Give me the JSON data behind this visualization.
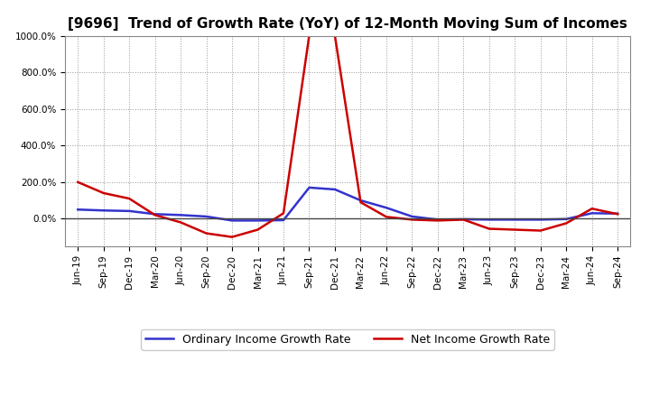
{
  "title": "[9696]  Trend of Growth Rate (YoY) of 12-Month Moving Sum of Incomes",
  "x_labels": [
    "Jun-19",
    "Sep-19",
    "Dec-19",
    "Mar-20",
    "Jun-20",
    "Sep-20",
    "Dec-20",
    "Mar-21",
    "Jun-21",
    "Sep-21",
    "Dec-21",
    "Mar-22",
    "Jun-22",
    "Sep-22",
    "Dec-22",
    "Mar-23",
    "Jun-23",
    "Sep-23",
    "Dec-23",
    "Mar-24",
    "Jun-24",
    "Sep-24"
  ],
  "ordinary_income": [
    50,
    45,
    42,
    25,
    20,
    12,
    -10,
    -10,
    -8,
    170,
    160,
    100,
    60,
    12,
    -5,
    -3,
    -5,
    -5,
    -5,
    -2,
    30,
    28
  ],
  "net_income": [
    200,
    140,
    110,
    20,
    -20,
    -80,
    -100,
    -60,
    30,
    1000,
    1000,
    90,
    10,
    -5,
    -10,
    -5,
    -55,
    -60,
    -65,
    -25,
    55,
    25
  ],
  "ylim": [
    -150,
    1000
  ],
  "yticks": [
    0,
    200,
    400,
    600,
    800,
    1000
  ],
  "ordinary_color": "#3333cc",
  "net_color": "#cc0000",
  "legend_ordinary": "Ordinary Income Growth Rate",
  "legend_net": "Net Income Growth Rate",
  "bg_color": "#ffffff",
  "grid_color": "#999999",
  "title_fontsize": 11,
  "tick_fontsize": 7.5,
  "legend_fontsize": 9,
  "zero_line_color": "#444444"
}
